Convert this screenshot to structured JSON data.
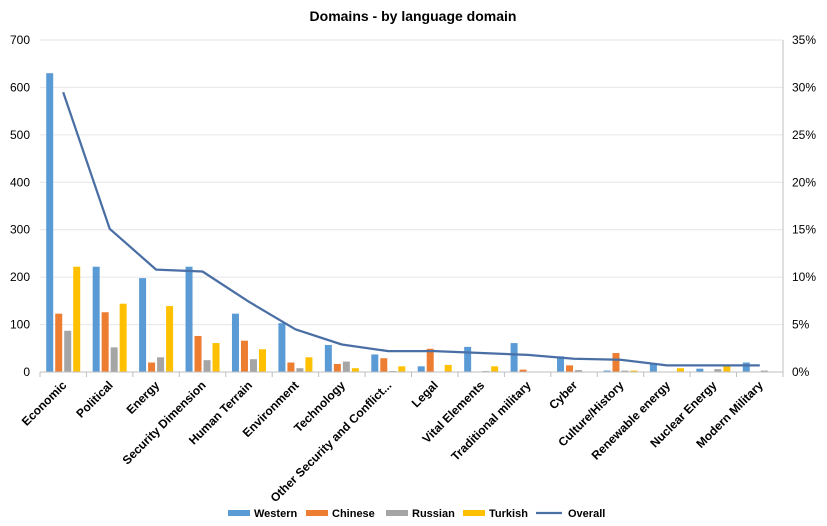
{
  "chart_data": {
    "type": "bar",
    "title": "Domains - by language domain",
    "categories": [
      "Economic",
      "Political",
      "Energy",
      "Security Dimension",
      "Human Terrain",
      "Environment",
      "Technology",
      "Other Security and Conflict...",
      "Legal",
      "Vital Elements",
      "Traditional military",
      "Cyber",
      "Culture/History",
      "Renewable energy",
      "Nuclear Energy",
      "Modern Military"
    ],
    "series": [
      {
        "name": "Western",
        "color": "#5b9bd5",
        "values": [
          630,
          222,
          198,
          222,
          123,
          103,
          57,
          37,
          12,
          53,
          61,
          33,
          3,
          18,
          7,
          20
        ]
      },
      {
        "name": "Chinese",
        "color": "#ed7d31",
        "values": [
          123,
          126,
          20,
          76,
          66,
          20,
          17,
          29,
          49,
          0,
          5,
          14,
          40,
          0,
          0,
          0
        ]
      },
      {
        "name": "Russian",
        "color": "#a5a5a5",
        "values": [
          87,
          52,
          31,
          25,
          27,
          8,
          22,
          2,
          0,
          2,
          0,
          4,
          3,
          0,
          6,
          3
        ]
      },
      {
        "name": "Turkish",
        "color": "#ffc000",
        "values": [
          222,
          144,
          139,
          61,
          48,
          31,
          8,
          12,
          15,
          12,
          0,
          0,
          3,
          8,
          14,
          0
        ]
      }
    ],
    "line_series": {
      "name": "Overall",
      "color": "#4a6fa5",
      "axis": "right",
      "values": [
        29.5,
        15.1,
        10.8,
        10.6,
        7.4,
        4.5,
        2.9,
        2.2,
        2.2,
        2.0,
        1.8,
        1.4,
        1.3,
        0.7,
        0.7,
        0.7
      ]
    },
    "y_left": {
      "min": 0,
      "max": 700,
      "step": 100,
      "tick_labels": [
        "0",
        "100",
        "200",
        "300",
        "400",
        "500",
        "600",
        "700"
      ]
    },
    "y_right": {
      "min": 0,
      "max": 35,
      "step": 5,
      "tick_labels": [
        "0%",
        "5%",
        "10%",
        "15%",
        "20%",
        "25%",
        "30%",
        "35%"
      ]
    },
    "grid": true,
    "legend": "bottom",
    "legend_entries": [
      "Western",
      "Chinese",
      "Russian",
      "Turkish",
      "Overall"
    ]
  }
}
